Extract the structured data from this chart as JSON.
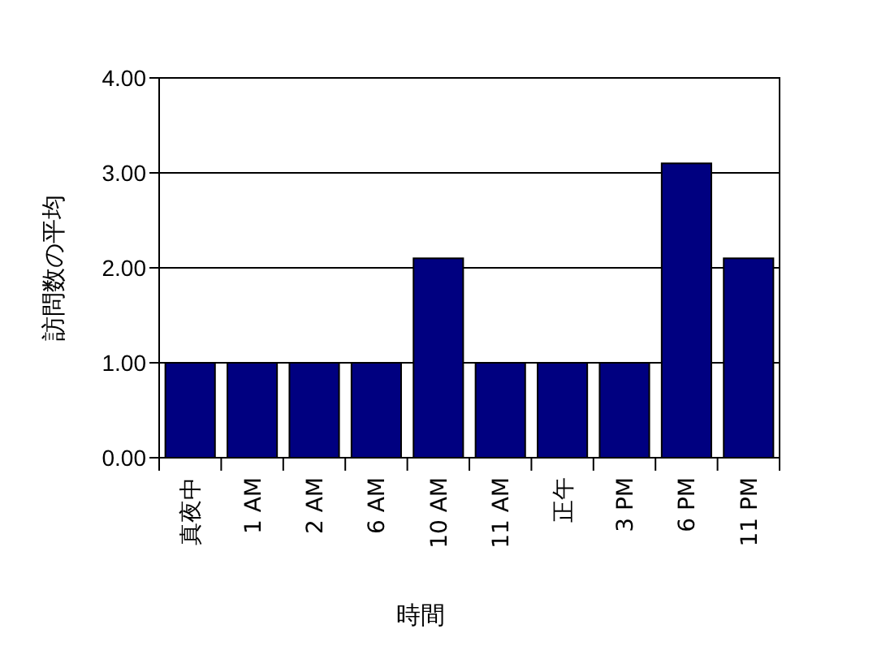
{
  "chart_data": {
    "type": "bar",
    "xlabel": "時間",
    "ylabel": "訪問数の平均",
    "categories": [
      "真夜中",
      "1 AM",
      "2 AM",
      "6 AM",
      "10 AM",
      "11 AM",
      "正午",
      "3 PM",
      "6 PM",
      "11 PM"
    ],
    "values": [
      1.0,
      1.0,
      1.0,
      1.0,
      2.1,
      1.0,
      1.0,
      1.0,
      3.1,
      2.1
    ],
    "color": "#000080",
    "ylim": [
      0,
      4
    ],
    "yticks": [
      {
        "value": 0,
        "label": "0.00"
      },
      {
        "value": 1,
        "label": "1.00"
      },
      {
        "value": 2,
        "label": "2.00"
      },
      {
        "value": 3,
        "label": "3.00"
      },
      {
        "value": 4,
        "label": "4.00"
      }
    ],
    "grid": "y"
  }
}
